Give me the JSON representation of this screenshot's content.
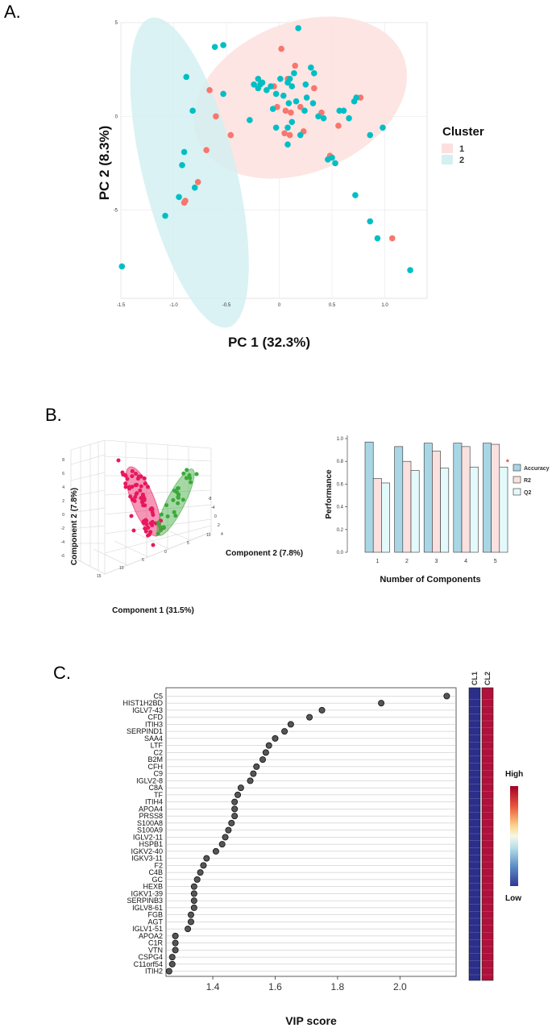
{
  "panel_labels": {
    "a": "A.",
    "b": "B.",
    "c": "C."
  },
  "chart_data": [
    {
      "id": "pca",
      "type": "scatter",
      "xlabel": "PC 1 (32.3%)",
      "ylabel": "PC 2 (8.3%)",
      "xlim": [
        -15,
        14
      ],
      "ylim": [
        -9.7,
        5
      ],
      "x_ticks": [
        -15,
        -10,
        -5,
        0,
        5,
        10
      ],
      "x_tick_labels": [
        "-1.5",
        "-1.0",
        "-0.5",
        "0",
        "0.5",
        "1.0"
      ],
      "y_ticks": [
        5,
        0,
        -5
      ],
      "y_tick_labels": [
        "5",
        "0",
        "-5"
      ],
      "legend_title": "Cluster",
      "legend": [
        {
          "name": "1",
          "color": "#f8766d",
          "fill": "#fde0de"
        },
        {
          "name": "2",
          "color": "#00bfc4",
          "fill": "#d4f0f1"
        }
      ],
      "ellipses": [
        {
          "cluster": "1",
          "cx": 2,
          "cy": 1,
          "rx": 10.5,
          "ry": 4,
          "angle_deg": -22
        },
        {
          "cluster": "2",
          "cx": -8.5,
          "cy": -3,
          "rx": 4.4,
          "ry": 8.5,
          "angle_deg": -14
        }
      ],
      "series": [
        {
          "name": "1",
          "points": [
            [
              0.2,
              3.6
            ],
            [
              1.5,
              2.7
            ],
            [
              3.3,
              1.5
            ],
            [
              0.8,
              2
            ],
            [
              -0.5,
              1.6
            ],
            [
              0.6,
              0.3
            ],
            [
              1.1,
              0.2
            ],
            [
              -0.2,
              0.5
            ],
            [
              2.0,
              0.5
            ],
            [
              4.0,
              0.2
            ],
            [
              5.6,
              -0.5
            ],
            [
              7.7,
              1.0
            ],
            [
              0.5,
              -0.9
            ],
            [
              1.0,
              -1.0
            ],
            [
              2.3,
              -0.8
            ],
            [
              4.8,
              -2.1
            ],
            [
              -6.6,
              1.4
            ],
            [
              -6.0,
              0.0
            ],
            [
              -4.6,
              -1.0
            ],
            [
              -6.9,
              -1.8
            ],
            [
              -7.7,
              -3.5
            ],
            [
              -8.9,
              -4.5
            ],
            [
              -9.0,
              -4.6
            ],
            [
              10.7,
              -6.5
            ]
          ]
        },
        {
          "name": "2",
          "points": [
            [
              1.8,
              4.7
            ],
            [
              -5.3,
              3.8
            ],
            [
              -6.1,
              3.7
            ],
            [
              -8.8,
              2.1
            ],
            [
              -5.3,
              1.2
            ],
            [
              -8.2,
              0.3
            ],
            [
              -2.8,
              -0.2
            ],
            [
              -9.0,
              -1.9
            ],
            [
              -9.2,
              -2.6
            ],
            [
              -8.0,
              -3.8
            ],
            [
              -9.5,
              -4.3
            ],
            [
              -10.8,
              -5.3
            ],
            [
              -14.9,
              -8.0
            ],
            [
              3.0,
              2.6
            ],
            [
              1.4,
              2.3
            ],
            [
              1.0,
              2.0
            ],
            [
              0.8,
              1.8
            ],
            [
              1.2,
              1.6
            ],
            [
              -0.3,
              1.2
            ],
            [
              -2.0,
              2.0
            ],
            [
              -1.6,
              1.8
            ],
            [
              -2.4,
              1.7
            ],
            [
              -2.0,
              1.5
            ],
            [
              -1.8,
              1.7
            ],
            [
              -1.2,
              1.4
            ],
            [
              -0.8,
              1.6
            ],
            [
              0.1,
              2.0
            ],
            [
              0.4,
              1.1
            ],
            [
              0.9,
              0.7
            ],
            [
              1.6,
              0.8
            ],
            [
              2.6,
              1.0
            ],
            [
              3.2,
              0.7
            ],
            [
              2.4,
              0.3
            ],
            [
              3.7,
              0.0
            ],
            [
              3.3,
              2.3
            ],
            [
              2.5,
              1.7
            ],
            [
              -0.6,
              0.4
            ],
            [
              0.8,
              -0.6
            ],
            [
              1.2,
              -0.3
            ],
            [
              2.0,
              -1.0
            ],
            [
              4.2,
              -0.1
            ],
            [
              5.7,
              0.3
            ],
            [
              6.1,
              0.3
            ],
            [
              6.6,
              -0.1
            ],
            [
              7.3,
              1.0
            ],
            [
              7.1,
              0.8
            ],
            [
              8.6,
              -1.0
            ],
            [
              9.8,
              -0.6
            ],
            [
              5.0,
              -2.2
            ],
            [
              5.3,
              -2.5
            ],
            [
              4.6,
              -2.3
            ],
            [
              0.8,
              -1.5
            ],
            [
              -0.3,
              -0.6
            ],
            [
              7.2,
              -4.2
            ],
            [
              8.6,
              -5.6
            ],
            [
              9.3,
              -6.5
            ],
            [
              12.4,
              -8.2
            ]
          ]
        }
      ]
    },
    {
      "id": "pls3d",
      "type": "scatter",
      "xlabel": "Component 1 (31.5%)",
      "ylabel": "Component 2 (7.8%)",
      "zlabel": "Component 2 (7.8%)",
      "front_ticks": [
        "15",
        "10",
        "5",
        "0",
        "5",
        "10"
      ],
      "left_ticks": [
        "8",
        "6",
        "4",
        "2",
        "0",
        "-2",
        "-4",
        "-6"
      ],
      "right_ticks": [
        "-8",
        "-4",
        "0",
        "2",
        "4"
      ],
      "groups": [
        {
          "name": "group-1",
          "color": "#e8175d"
        },
        {
          "name": "group-2",
          "color": "#3aa93a"
        }
      ]
    },
    {
      "id": "performance",
      "type": "bar",
      "xlabel": "Number of Components",
      "ylabel": "Performance",
      "categories": [
        "1",
        "2",
        "3",
        "4",
        "5"
      ],
      "ylim": [
        0,
        1.0
      ],
      "y_ticks": [
        "0.0",
        "0.2",
        "0.4",
        "0.6",
        "0.8",
        "1.0"
      ],
      "series": [
        {
          "name": "Accuracy",
          "color": "#a9d6e5",
          "values": [
            0.97,
            0.93,
            0.96,
            0.96,
            0.96
          ]
        },
        {
          "name": "R2",
          "color": "#fbe0e0",
          "values": [
            0.65,
            0.8,
            0.89,
            0.93,
            0.95
          ]
        },
        {
          "name": "Q2",
          "color": "#e4f9fa",
          "values": [
            0.61,
            0.72,
            0.74,
            0.75,
            0.75
          ]
        }
      ],
      "marker": {
        "category": "5",
        "symbol": "*",
        "color": "#e53935"
      }
    },
    {
      "id": "vip",
      "type": "scatter",
      "xlabel": "VIP score",
      "xlim": [
        1.25,
        2.18
      ],
      "x_ticks": [
        1.4,
        1.6,
        1.8,
        2.0
      ],
      "x_tick_labels": [
        "1.4",
        "1.6",
        "1.8",
        "2.0"
      ],
      "proteins": [
        "C5",
        "HIST1H2BD",
        "IGLV7-43",
        "CFD",
        "ITIH3",
        "SERPIND1",
        "SAA4",
        "LTF",
        "C2",
        "B2M",
        "CFH",
        "C9",
        "IGLV2-8",
        "C8A",
        "TF",
        "ITIH4",
        "APOA4",
        "PRSS8",
        "S100A8",
        "S100A9",
        "IGLV2-11",
        "HSPB1",
        "IGKV2-40",
        "IGKV3-11",
        "F2",
        "C4B",
        "GC",
        "HEXB",
        "IGKV1-39",
        "SERPINB3",
        "IGLV8-61",
        "FGB",
        "AGT",
        "IGLV1-51",
        "APOA2",
        "C1R",
        "VTN",
        "CSPG4",
        "C11orf54",
        "ITIH2"
      ],
      "values": [
        2.15,
        1.94,
        1.75,
        1.71,
        1.65,
        1.63,
        1.6,
        1.58,
        1.57,
        1.56,
        1.54,
        1.53,
        1.52,
        1.49,
        1.48,
        1.47,
        1.47,
        1.47,
        1.46,
        1.45,
        1.44,
        1.43,
        1.41,
        1.38,
        1.37,
        1.36,
        1.35,
        1.34,
        1.34,
        1.34,
        1.34,
        1.33,
        1.33,
        1.32,
        1.28,
        1.28,
        1.28,
        1.27,
        1.27,
        1.26
      ],
      "heatmap_columns": [
        "CL1",
        "CL2"
      ],
      "heatmap_colors": {
        "CL1": "#2b2f8a",
        "CL2": "#b0103a"
      },
      "scale_labels": {
        "high": "High",
        "low": "Low"
      }
    }
  ]
}
